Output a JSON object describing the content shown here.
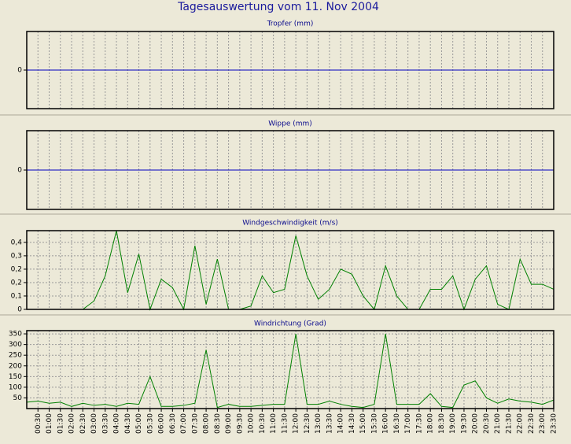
{
  "title": "Tagesauswertung vom 11. Nov 2004",
  "chart_data": [
    {
      "type": "line",
      "title": "Tropfer (mm)",
      "ylim": [
        -1,
        1
      ],
      "yticks": [
        0
      ],
      "grid": "vertical",
      "series": [
        {
          "color": "#0000c0",
          "values": [
            0,
            0,
            0,
            0,
            0,
            0,
            0,
            0,
            0,
            0,
            0,
            0,
            0,
            0,
            0,
            0,
            0,
            0,
            0,
            0,
            0,
            0,
            0,
            0,
            0,
            0,
            0,
            0,
            0,
            0,
            0,
            0,
            0,
            0,
            0,
            0,
            0,
            0,
            0,
            0,
            0,
            0,
            0,
            0,
            0,
            0,
            0,
            0
          ]
        }
      ]
    },
    {
      "type": "line",
      "title": "Wippe (mm)",
      "ylim": [
        -1,
        1
      ],
      "yticks": [
        0
      ],
      "grid": "vertical",
      "series": [
        {
          "color": "#0000c0",
          "values": [
            0,
            0,
            0,
            0,
            0,
            0,
            0,
            0,
            0,
            0,
            0,
            0,
            0,
            0,
            0,
            0,
            0,
            0,
            0,
            0,
            0,
            0,
            0,
            0,
            0,
            0,
            0,
            0,
            0,
            0,
            0,
            0,
            0,
            0,
            0,
            0,
            0,
            0,
            0,
            0,
            0,
            0,
            0,
            0,
            0,
            0,
            0,
            0
          ]
        }
      ]
    },
    {
      "type": "line",
      "title": "Windgeschwindigkeit (m/s)",
      "ylim": [
        0,
        0.47
      ],
      "grid": "both",
      "yticks": [
        0,
        {
          "value": 0.08,
          "label": "0,1"
        },
        {
          "value": 0.16,
          "label": "0,2"
        },
        {
          "value": 0.24,
          "label": "0,2"
        },
        {
          "value": 0.32,
          "label": "0,3"
        },
        {
          "value": 0.4,
          "label": "0,4"
        }
      ],
      "series": [
        {
          "color": "#008000",
          "values": [
            0,
            0,
            0,
            0,
            0,
            0,
            0.05,
            0.2,
            0.47,
            0.1,
            0.33,
            0,
            0.18,
            0.13,
            0,
            0.38,
            0.03,
            0.3,
            0,
            0,
            0.02,
            0.2,
            0.1,
            0.12,
            0.44,
            0.2,
            0.06,
            0.12,
            0.24,
            0.21,
            0.08,
            0,
            0.26,
            0.08,
            0,
            0,
            0.12,
            0.12,
            0.2,
            0,
            0.18,
            0.26,
            0.03,
            0,
            0.3,
            0.15,
            0.15,
            0.12
          ]
        }
      ]
    },
    {
      "type": "line",
      "title": "Windrichtung (Grad)",
      "ylim": [
        0,
        365
      ],
      "grid": "both",
      "yticks": [
        50,
        100,
        150,
        200,
        250,
        300,
        350
      ],
      "categories": [
        null,
        "00:30",
        "01:00",
        "01:30",
        "02:00",
        "02:30",
        "03:00",
        "03:30",
        "04:00",
        "04:30",
        "05:00",
        "05:30",
        "06:00",
        "06:30",
        "07:00",
        "07:30",
        "08:00",
        "08:30",
        "09:00",
        "09:30",
        "10:00",
        "10:30",
        "11:00",
        "11:30",
        "12:00",
        "12:30",
        "13:00",
        "13:30",
        "14:00",
        "14:30",
        "15:00",
        "15:30",
        "16:00",
        "16:30",
        "17:00",
        "17:30",
        "18:00",
        "18:30",
        "19:00",
        "19:30",
        "20:00",
        "20:30",
        "21:00",
        "21:30",
        "22:00",
        "22:30",
        "23:00",
        "23:30"
      ],
      "series": [
        {
          "color": "#008000",
          "values": [
            30,
            35,
            25,
            30,
            10,
            25,
            15,
            20,
            10,
            25,
            20,
            150,
            10,
            10,
            15,
            25,
            275,
            5,
            20,
            10,
            10,
            15,
            20,
            20,
            350,
            20,
            20,
            35,
            20,
            10,
            5,
            20,
            350,
            20,
            20,
            20,
            70,
            10,
            5,
            110,
            130,
            50,
            25,
            45,
            35,
            30,
            20,
            40
          ]
        }
      ]
    }
  ]
}
